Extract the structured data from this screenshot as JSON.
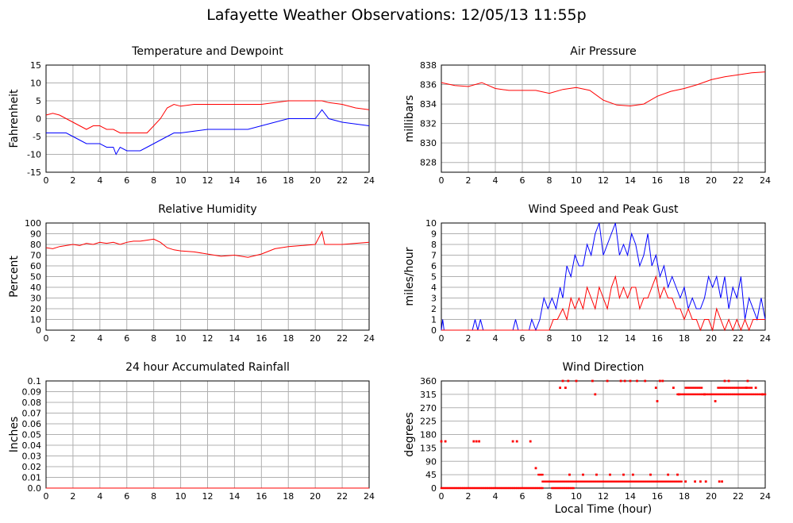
{
  "page": {
    "title": "Lafayette Weather Observations: 12/05/13 11:55p",
    "xlabel": "Local Time (hour)"
  },
  "colors": {
    "red": "#ff0000",
    "blue": "#0000ff",
    "grid": "#b0b0b0"
  },
  "chart_data": [
    {
      "id": "temp",
      "type": "line",
      "title": "Temperature and Dewpoint",
      "ylabel": "Fahrenheit",
      "xlim": [
        0,
        24
      ],
      "ylim": [
        -15,
        15
      ],
      "yticks": [
        "15",
        "10",
        "5",
        "0",
        "-5",
        "-10",
        "-15"
      ],
      "yticks_values": [
        15,
        10,
        5,
        0,
        -5,
        -10,
        -15
      ],
      "xticks": [
        "0",
        "2",
        "4",
        "6",
        "8",
        "10",
        "12",
        "14",
        "16",
        "18",
        "20",
        "22",
        "24"
      ],
      "grid": true,
      "series": [
        {
          "color": "#ff0000",
          "x": [
            0,
            0.5,
            1,
            1.5,
            2,
            2.5,
            3,
            3.5,
            4,
            4.5,
            5,
            5.5,
            6,
            6.5,
            7,
            7.5,
            8,
            8.5,
            9,
            9.5,
            10,
            11,
            12,
            13,
            14,
            15,
            16,
            17,
            18,
            19,
            20,
            20.5,
            21,
            22,
            23,
            24
          ],
          "y": [
            1,
            1.5,
            1,
            0,
            -1,
            -2,
            -3,
            -2,
            -2,
            -3,
            -3,
            -4,
            -4,
            -4,
            -4,
            -4,
            -2,
            0,
            3,
            4,
            3.5,
            4,
            4,
            4,
            4,
            4,
            4,
            4.5,
            5,
            5,
            5,
            5,
            4.5,
            4,
            3,
            2.5
          ]
        },
        {
          "color": "#0000ff",
          "x": [
            0,
            0.5,
            1,
            1.5,
            2,
            2.5,
            3,
            3.5,
            4,
            4.5,
            5,
            5.2,
            5.5,
            6,
            6.5,
            7,
            7.5,
            8,
            8.5,
            9,
            9.5,
            10,
            11,
            12,
            13,
            14,
            15,
            16,
            17,
            18,
            19,
            20,
            20.5,
            21,
            22,
            23,
            24
          ],
          "y": [
            -4,
            -4,
            -4,
            -4,
            -5,
            -6,
            -7,
            -7,
            -7,
            -8,
            -8,
            -10,
            -8,
            -9,
            -9,
            -9,
            -8,
            -7,
            -6,
            -5,
            -4,
            -4,
            -3.5,
            -3,
            -3,
            -3,
            -3,
            -2,
            -1,
            0,
            0,
            0,
            2.5,
            0,
            -1,
            -1.5,
            -2
          ]
        }
      ]
    },
    {
      "id": "pressure",
      "type": "line",
      "title": "Air Pressure",
      "ylabel": "millibars",
      "xlim": [
        0,
        24
      ],
      "ylim": [
        827,
        838
      ],
      "yticks": [
        "838",
        "836",
        "834",
        "832",
        "830",
        "828"
      ],
      "yticks_values": [
        838,
        836,
        834,
        832,
        830,
        828
      ],
      "xticks": [
        "0",
        "2",
        "4",
        "6",
        "8",
        "10",
        "12",
        "14",
        "16",
        "18",
        "20",
        "22",
        "24"
      ],
      "grid": true,
      "series": [
        {
          "color": "#ff0000",
          "x": [
            0,
            1,
            2,
            3,
            4,
            5,
            6,
            7,
            8,
            9,
            10,
            11,
            12,
            13,
            14,
            15,
            16,
            17,
            18,
            19,
            20,
            21,
            22,
            23,
            24
          ],
          "y": [
            836.2,
            835.9,
            835.8,
            836.2,
            835.6,
            835.4,
            835.4,
            835.4,
            835.1,
            835.5,
            835.7,
            835.4,
            834.4,
            833.9,
            833.8,
            834.0,
            834.8,
            835.3,
            835.6,
            836.0,
            836.5,
            836.8,
            837.0,
            837.2,
            837.3
          ]
        }
      ]
    },
    {
      "id": "humidity",
      "type": "line",
      "title": "Relative Humidity",
      "ylabel": "Percent",
      "xlim": [
        0,
        24
      ],
      "ylim": [
        0,
        100
      ],
      "yticks": [
        "100",
        "90",
        "80",
        "70",
        "60",
        "50",
        "40",
        "30",
        "20",
        "10",
        "0"
      ],
      "yticks_values": [
        100,
        90,
        80,
        70,
        60,
        50,
        40,
        30,
        20,
        10,
        0
      ],
      "xticks": [
        "0",
        "2",
        "4",
        "6",
        "8",
        "10",
        "12",
        "14",
        "16",
        "18",
        "20",
        "22",
        "24"
      ],
      "grid": true,
      "series": [
        {
          "color": "#ff0000",
          "x": [
            0,
            0.5,
            1,
            1.5,
            2,
            2.5,
            3,
            3.5,
            4,
            4.5,
            5,
            5.5,
            6,
            6.5,
            7,
            7.5,
            8,
            8.5,
            9,
            9.5,
            10,
            11,
            12,
            13,
            14,
            15,
            16,
            17,
            18,
            19,
            20,
            20.5,
            20.7,
            21,
            22,
            23,
            24
          ],
          "y": [
            77,
            76,
            78,
            79,
            80,
            79,
            81,
            80,
            82,
            81,
            82,
            80,
            82,
            83,
            83,
            84,
            85,
            82,
            77,
            75,
            74,
            73,
            71,
            69,
            70,
            68,
            71,
            76,
            78,
            79,
            80,
            92,
            80,
            80,
            80,
            81,
            82
          ]
        }
      ]
    },
    {
      "id": "wind",
      "type": "line",
      "title": "Wind Speed and Peak Gust",
      "ylabel": "miles/hour",
      "xlim": [
        0,
        24
      ],
      "ylim": [
        0,
        10
      ],
      "yticks": [
        "10",
        "9",
        "8",
        "7",
        "6",
        "5",
        "4",
        "3",
        "2",
        "1",
        "0"
      ],
      "yticks_values": [
        10,
        9,
        8,
        7,
        6,
        5,
        4,
        3,
        2,
        1,
        0
      ],
      "xticks": [
        "0",
        "2",
        "4",
        "6",
        "8",
        "10",
        "12",
        "14",
        "16",
        "18",
        "20",
        "22",
        "24"
      ],
      "grid": true,
      "series": [
        {
          "color": "#0000ff",
          "x": [
            0,
            0.1,
            0.2,
            0.4,
            2.3,
            2.5,
            2.7,
            2.9,
            3.1,
            5.3,
            5.5,
            5.7,
            6.5,
            6.7,
            7,
            7.3,
            7.6,
            7.9,
            8.2,
            8.5,
            8.8,
            9,
            9.3,
            9.6,
            9.9,
            10.2,
            10.5,
            10.8,
            11.1,
            11.4,
            11.7,
            12,
            12.3,
            12.6,
            12.9,
            13.2,
            13.5,
            13.8,
            14.1,
            14.4,
            14.7,
            15,
            15.3,
            15.6,
            15.9,
            16.2,
            16.5,
            16.8,
            17.1,
            17.4,
            17.7,
            18,
            18.3,
            18.6,
            18.9,
            19.2,
            19.5,
            19.8,
            20.1,
            20.4,
            20.7,
            21,
            21.3,
            21.6,
            21.9,
            22.2,
            22.5,
            22.8,
            23.1,
            23.4,
            23.7,
            24
          ],
          "y": [
            0,
            1,
            0,
            0,
            0,
            1,
            0,
            1,
            0,
            0,
            1,
            0,
            0,
            1,
            0,
            1,
            3,
            2,
            3,
            2,
            4,
            3,
            6,
            5,
            7,
            6,
            6,
            8,
            7,
            9,
            10,
            7,
            8,
            9,
            10,
            7,
            8,
            7,
            9,
            8,
            6,
            7,
            9,
            6,
            7,
            5,
            6,
            4,
            5,
            4,
            3,
            4,
            2,
            3,
            2,
            2,
            3,
            5,
            4,
            5,
            3,
            5,
            2,
            4,
            3,
            5,
            1,
            3,
            2,
            1,
            3,
            1
          ]
        },
        {
          "color": "#ff0000",
          "x": [
            0,
            7.5,
            8,
            8.3,
            8.6,
            9,
            9.3,
            9.6,
            9.9,
            10.2,
            10.5,
            10.8,
            11.1,
            11.4,
            11.7,
            12,
            12.3,
            12.6,
            12.9,
            13.2,
            13.5,
            13.8,
            14.1,
            14.4,
            14.7,
            15,
            15.3,
            15.6,
            15.9,
            16.2,
            16.5,
            16.8,
            17.1,
            17.4,
            17.7,
            18,
            18.3,
            18.6,
            18.9,
            19.2,
            19.5,
            19.8,
            20.1,
            20.4,
            20.7,
            21,
            21.3,
            21.6,
            21.9,
            22.2,
            22.5,
            22.8,
            23.1,
            23.4,
            23.7,
            24
          ],
          "y": [
            0,
            0,
            0,
            1,
            1,
            2,
            1,
            3,
            2,
            3,
            2,
            4,
            3,
            2,
            4,
            3,
            2,
            4,
            5,
            3,
            4,
            3,
            4,
            4,
            2,
            3,
            3,
            4,
            5,
            3,
            4,
            3,
            3,
            2,
            2,
            1,
            2,
            1,
            1,
            0,
            1,
            1,
            0,
            2,
            1,
            0,
            1,
            0,
            1,
            0,
            1,
            0,
            1,
            1,
            1,
            1
          ]
        }
      ]
    },
    {
      "id": "rain",
      "type": "line",
      "title": "24 hour Accumulated Rainfall",
      "ylabel": "Inches",
      "xlim": [
        0,
        24
      ],
      "ylim": [
        0,
        0.1
      ],
      "yticks": [
        "0.1",
        "0.09",
        "0.08",
        "0.07",
        "0.06",
        "0.05",
        "0.04",
        "0.03",
        "0.02",
        "0.01",
        "0.0"
      ],
      "yticks_values": [
        0.1,
        0.09,
        0.08,
        0.07,
        0.06,
        0.05,
        0.04,
        0.03,
        0.02,
        0.01,
        0
      ],
      "xticks": [
        "0",
        "2",
        "4",
        "6",
        "8",
        "10",
        "12",
        "14",
        "16",
        "18",
        "20",
        "22",
        "24"
      ],
      "grid": true,
      "series": [
        {
          "color": "#ff0000",
          "x": [
            0,
            24
          ],
          "y": [
            0,
            0
          ]
        }
      ]
    },
    {
      "id": "direction",
      "type": "scatter",
      "title": "Wind Direction",
      "ylabel": "degrees",
      "xlim": [
        0,
        24
      ],
      "ylim": [
        0,
        360
      ],
      "yticks": [
        "360",
        "315",
        "270",
        "225",
        "180",
        "135",
        "90",
        "45",
        "0"
      ],
      "yticks_values": [
        360,
        315,
        270,
        225,
        180,
        135,
        90,
        45,
        0
      ],
      "xticks": [
        "0",
        "2",
        "4",
        "6",
        "8",
        "10",
        "12",
        "14",
        "16",
        "18",
        "20",
        "22",
        "24"
      ],
      "grid": true,
      "series": [
        {
          "color": "#ff0000",
          "runs": [
            [
              0,
              7.5,
              0
            ],
            [
              8.2,
              9.8,
              0
            ],
            [
              7.2,
              7.5,
              45
            ],
            [
              7.5,
              17.8,
              22
            ],
            [
              18.1,
              19.3,
              337
            ],
            [
              17.5,
              24,
              315
            ],
            [
              20.5,
              23,
              337
            ]
          ],
          "points": [
            [
              0,
              157
            ],
            [
              0.3,
              157
            ],
            [
              2.4,
              157
            ],
            [
              2.6,
              157
            ],
            [
              2.8,
              157
            ],
            [
              5.3,
              157
            ],
            [
              5.6,
              157
            ],
            [
              6.6,
              157
            ],
            [
              7.0,
              67
            ],
            [
              8.8,
              337
            ],
            [
              9,
              360
            ],
            [
              9.2,
              337
            ],
            [
              9.4,
              360
            ],
            [
              10,
              360
            ],
            [
              11.2,
              360
            ],
            [
              11.4,
              315
            ],
            [
              12.3,
              360
            ],
            [
              13.3,
              360
            ],
            [
              13.6,
              360
            ],
            [
              14,
              360
            ],
            [
              14.5,
              360
            ],
            [
              15.1,
              360
            ],
            [
              15.9,
              337
            ],
            [
              16.0,
              292
            ],
            [
              16.2,
              360
            ],
            [
              16.4,
              360
            ],
            [
              17.2,
              337
            ],
            [
              17.6,
              315
            ],
            [
              18.1,
              22
            ],
            [
              19.2,
              22
            ],
            [
              19.6,
              22
            ],
            [
              19.5,
              315
            ],
            [
              20.3,
              292
            ],
            [
              20.6,
              22
            ],
            [
              21.0,
              360
            ],
            [
              21.3,
              360
            ],
            [
              22.7,
              360
            ],
            [
              23.3,
              337
            ],
            [
              9.5,
              45
            ],
            [
              10.5,
              45
            ],
            [
              11.5,
              45
            ],
            [
              12.5,
              45
            ],
            [
              13.5,
              45
            ],
            [
              14.2,
              45
            ],
            [
              15.5,
              45
            ],
            [
              16.8,
              45
            ],
            [
              17.5,
              45
            ],
            [
              18.8,
              22
            ],
            [
              20.8,
              22
            ],
            [
              22.6,
              337
            ],
            [
              23.8,
              315
            ]
          ]
        }
      ]
    }
  ]
}
